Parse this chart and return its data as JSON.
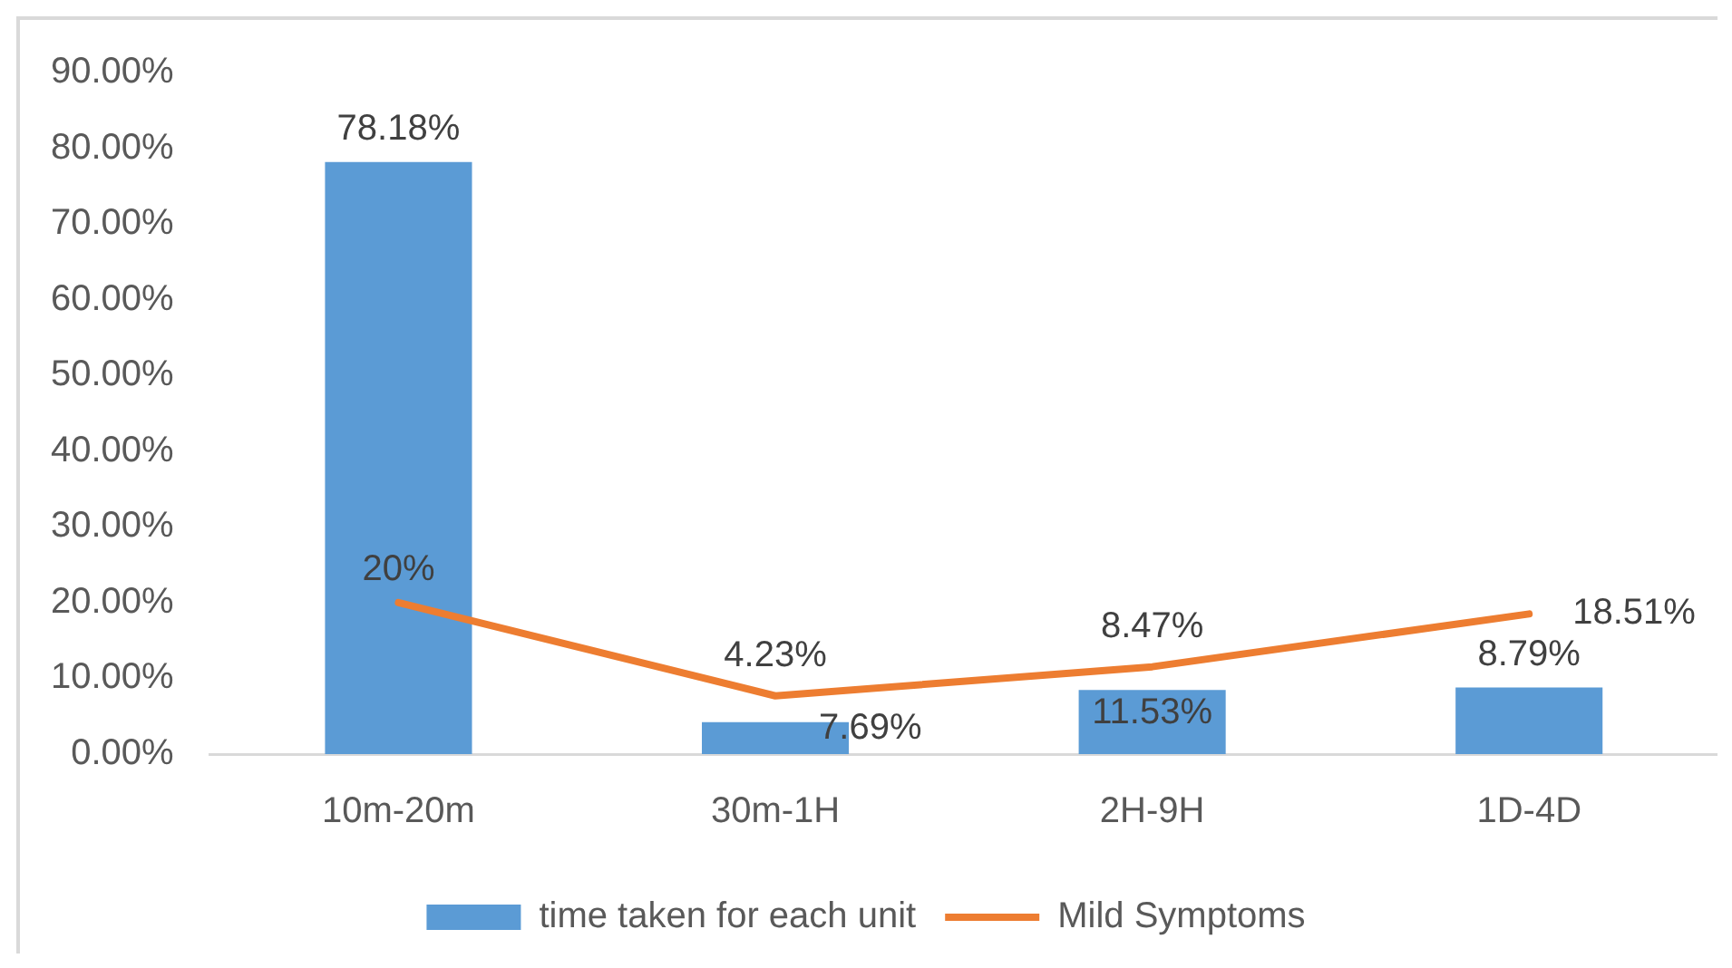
{
  "chart_data": {
    "type": "bar",
    "categories": [
      "10m-20m",
      "30m-1H",
      "2H-9H",
      "1D-4D"
    ],
    "series": [
      {
        "name": "time taken for each unit",
        "color": "#5b9bd5",
        "values": [
          78.18,
          4.23,
          8.47,
          8.79
        ],
        "value_labels": [
          "78.18%",
          "4.23%",
          "8.47%",
          "8.79%"
        ]
      },
      {
        "name": "Mild Symptoms",
        "type": "line",
        "color": "#ed7d31",
        "values": [
          20,
          7.69,
          11.53,
          18.51
        ],
        "value_labels": [
          "20%",
          "7.69%",
          "11.53%",
          "18.51%"
        ]
      }
    ],
    "ylim": [
      0,
      90
    ],
    "yticks": [
      {
        "value": 0,
        "label": "0.00%"
      },
      {
        "value": 10,
        "label": "10.00%"
      },
      {
        "value": 20,
        "label": "20.00%"
      },
      {
        "value": 30,
        "label": "30.00%"
      },
      {
        "value": 40,
        "label": "40.00%"
      },
      {
        "value": 50,
        "label": "50.00%"
      },
      {
        "value": 60,
        "label": "60.00%"
      },
      {
        "value": 70,
        "label": "70.00%"
      },
      {
        "value": 80,
        "label": "80.00%"
      },
      {
        "value": 90,
        "label": "90.00%"
      }
    ],
    "grid": false,
    "legend": "bottom",
    "marker": "none",
    "line_style": "solid"
  }
}
